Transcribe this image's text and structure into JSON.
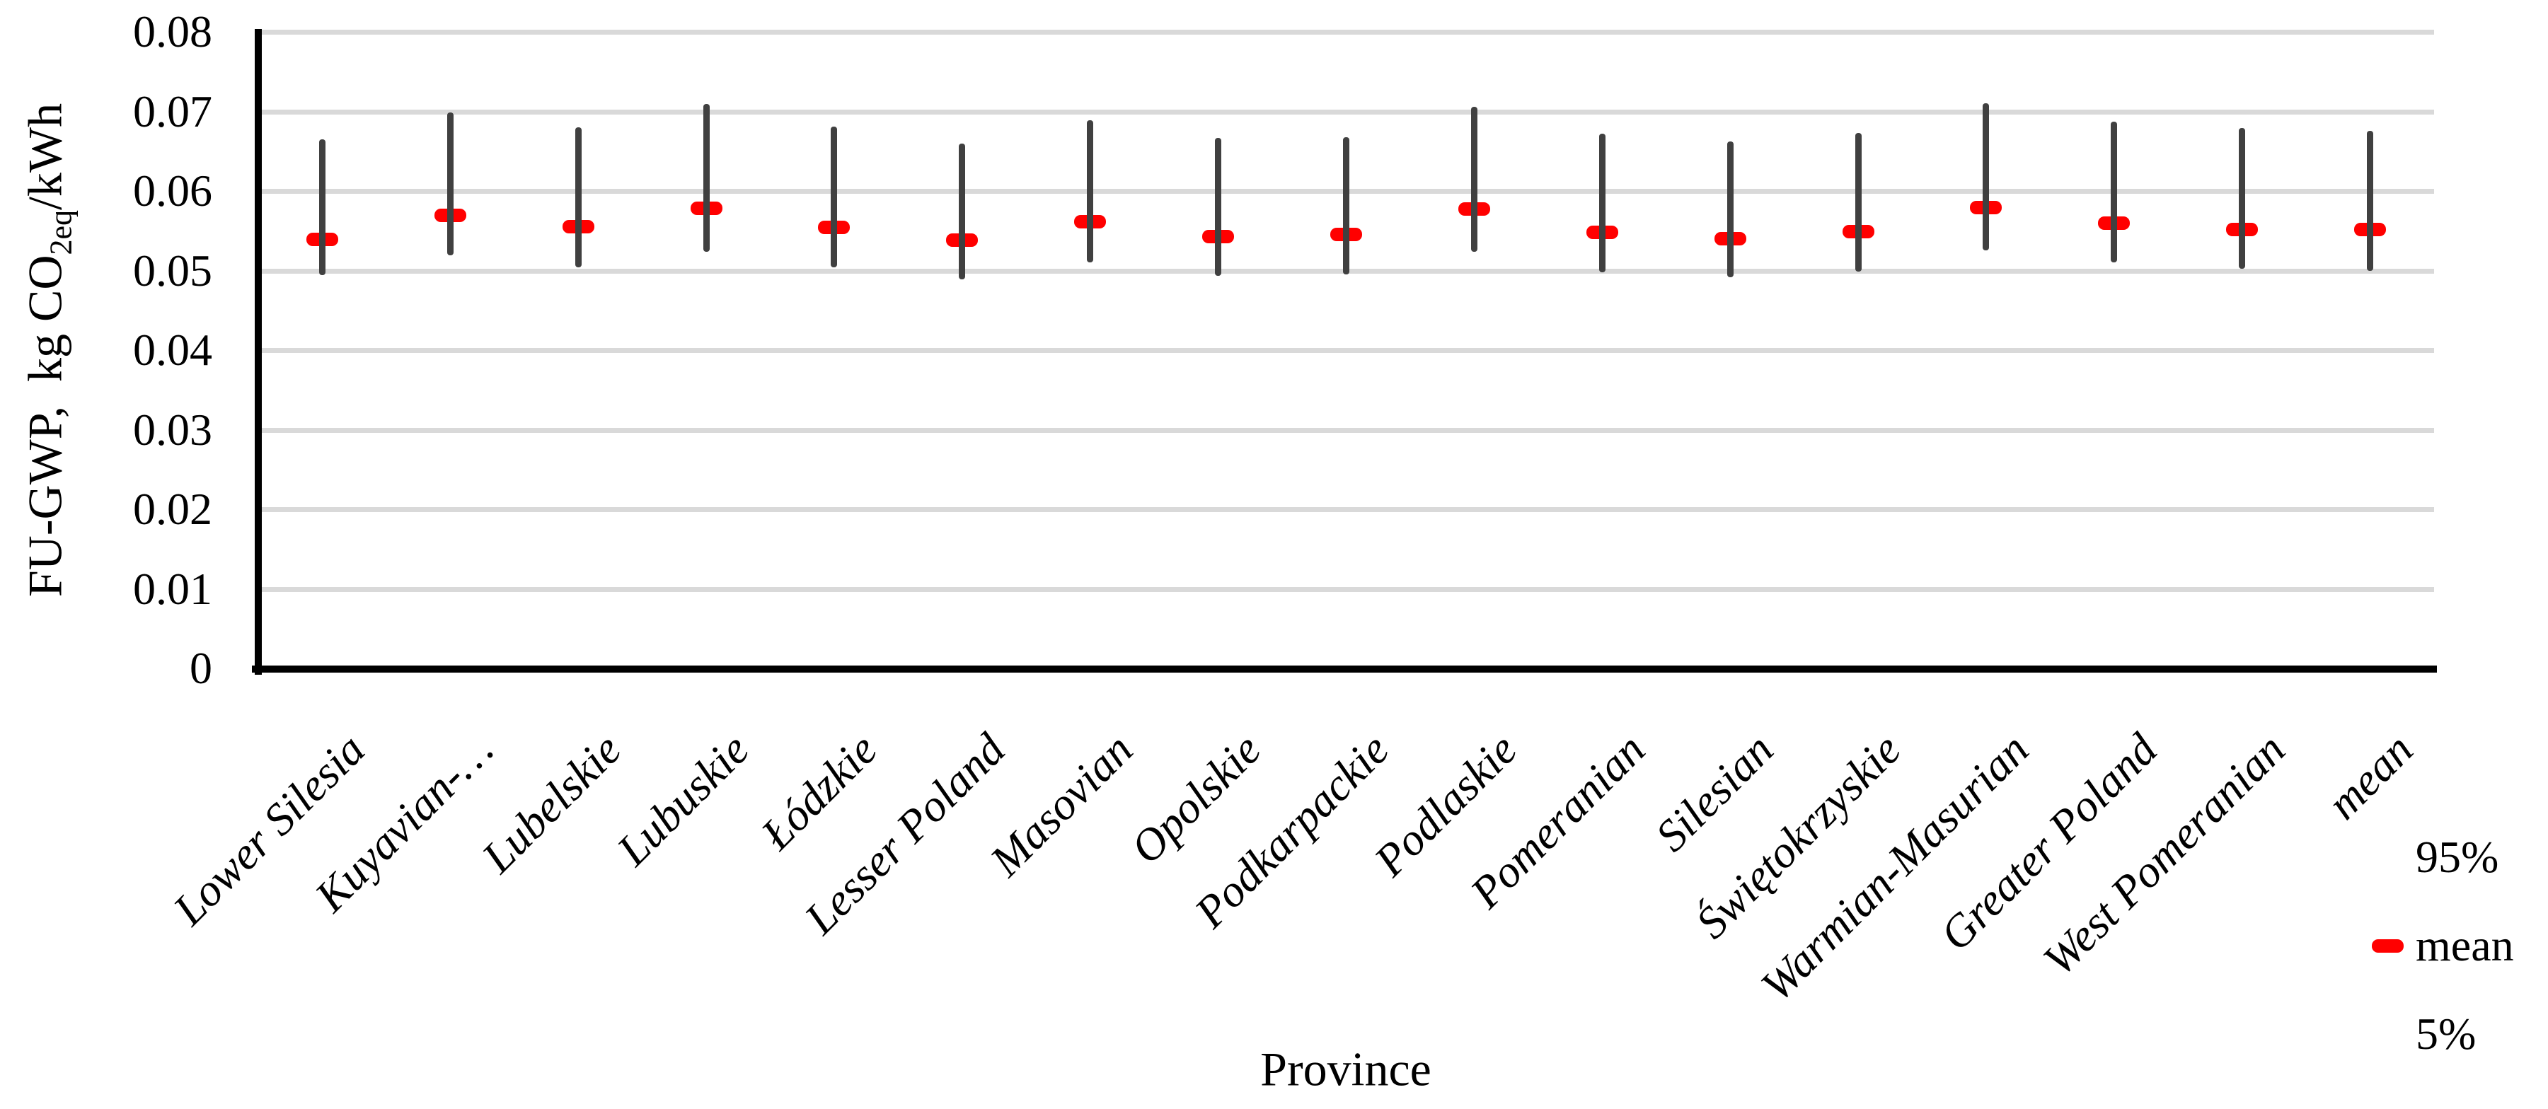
{
  "chart_data": {
    "type": "error_bar",
    "title": "",
    "xlabel": "Province",
    "ylabel": {
      "prefix": "FU-GWP,  kg CO",
      "subscript": "2eq",
      "suffix": "/kWh"
    },
    "ylim": [
      0,
      0.08
    ],
    "yticks": [
      0,
      0.01,
      0.02,
      0.03,
      0.04,
      0.05,
      0.06,
      0.07,
      0.08
    ],
    "ytick_labels": [
      "0",
      "0.01",
      "0.02",
      "0.03",
      "0.04",
      "0.05",
      "0.06",
      "0.07",
      "0.08"
    ],
    "grid": true,
    "categories": [
      "Lower Silesia",
      "Kuyavian-…",
      "Lubelskie",
      "Lubuskie",
      "Łódzkie",
      "Lesser Poland",
      "Masovian",
      "Opolskie",
      "Podkarpackie",
      "Podlaskie",
      "Pomeranian",
      "Silesian",
      "Świętokrzyskie",
      "Warmian-Masurian",
      "Greater Poland",
      "West Pomeranian",
      "mean"
    ],
    "series": [
      {
        "name": "95%",
        "role": "upper-whisker-end",
        "values": [
          0.0665,
          0.0699,
          0.068,
          0.0709,
          0.0681,
          0.066,
          0.0689,
          0.0667,
          0.0668,
          0.0706,
          0.0672,
          0.0662,
          0.0673,
          0.071,
          0.0687,
          0.0679,
          0.0676
        ]
      },
      {
        "name": "mean",
        "role": "mean-marker",
        "values": [
          0.0539,
          0.0569,
          0.0555,
          0.0578,
          0.0554,
          0.0538,
          0.0561,
          0.0543,
          0.0545,
          0.0577,
          0.0548,
          0.054,
          0.0549,
          0.0579,
          0.056,
          0.0552,
          0.0552
        ]
      },
      {
        "name": "5%",
        "role": "lower-whisker-end",
        "values": [
          0.0494,
          0.0519,
          0.0504,
          0.0524,
          0.0504,
          0.0489,
          0.051,
          0.0493,
          0.0495,
          0.0524,
          0.0498,
          0.0492,
          0.0499,
          0.0525,
          0.051,
          0.0502,
          0.05
        ]
      }
    ],
    "legend": {
      "position": "bottom-right",
      "items": [
        {
          "label": "95%",
          "swatch": "none"
        },
        {
          "label": "mean",
          "swatch": "red-dash"
        },
        {
          "label": "5%",
          "swatch": "none"
        }
      ]
    },
    "colors": {
      "mean_marker": "#FF0000",
      "whisker": "#404040",
      "gridline": "#D9D9D9",
      "axis": "#000000",
      "text": "#000000",
      "background": "#FFFFFF"
    }
  }
}
